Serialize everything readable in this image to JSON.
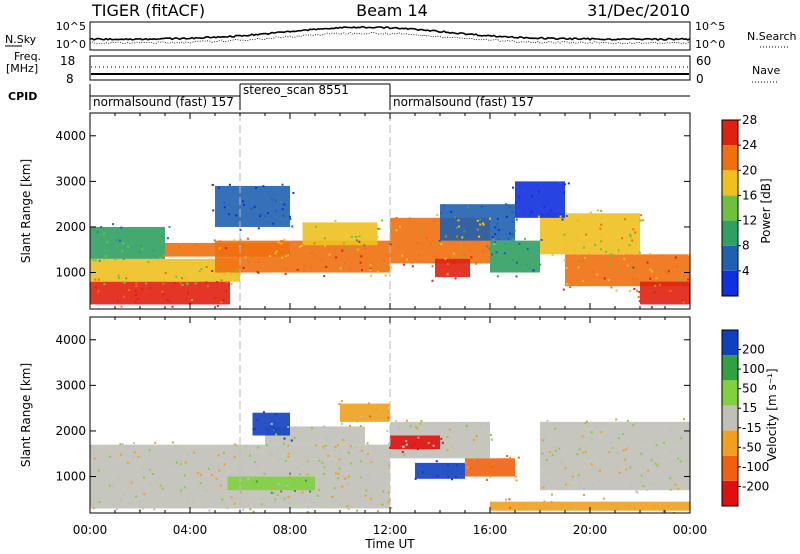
{
  "header": {
    "station": "TIGER (fitACF)",
    "beam": "Beam 14",
    "date": "31/Dec/2010"
  },
  "top_panels": {
    "nsky_label": "N.Sky",
    "freq_label_1": "Freq.",
    "freq_label_2": "[MHz]",
    "cpid_label": "CPID",
    "nsearch_label": "N.Search",
    "nave_label": "Nave",
    "nsky_ticks": [
      "10^5",
      "10^0"
    ],
    "nsearch_ticks": [
      "10^5",
      "10^0"
    ],
    "freq_ticks": [
      "18",
      "8"
    ],
    "nave_ticks": [
      "60",
      "0"
    ]
  },
  "cpid_segments": [
    {
      "label": "normalsound (fast) 157",
      "start_hour": 0,
      "end_hour": 6
    },
    {
      "label": "stereo_scan 8551",
      "start_hour": 6,
      "end_hour": 12
    },
    {
      "label": "normalsound (fast) 157",
      "start_hour": 12,
      "end_hour": 24
    }
  ],
  "colors": {
    "power": [
      "#1030e0",
      "#2060b0",
      "#30a060",
      "#70c040",
      "#f0c020",
      "#f07010",
      "#e02010"
    ],
    "velocity": [
      "#e01010",
      "#f06010",
      "#f0a020",
      "#c0c0b8",
      "#80d040",
      "#30a040",
      "#1040c0"
    ],
    "ground_scatter": "#b0b0b0"
  },
  "chart_data": [
    {
      "type": "heatmap",
      "name": "power_panel",
      "ylabel": "Slant Range [km]",
      "xlabel": "",
      "yticks": [
        "1000",
        "2000",
        "3000",
        "4000"
      ],
      "ylim": [
        200,
        4500
      ],
      "xlim": [
        0,
        24
      ],
      "colorbar": {
        "label": "Power [dB]",
        "ticks": [
          "4",
          "8",
          "12",
          "16",
          "20",
          "24",
          "28"
        ]
      },
      "regions": [
        {
          "x0": 0,
          "x1": 5.6,
          "y0": 300,
          "y1": 800,
          "value": 28
        },
        {
          "x0": 0,
          "x1": 6,
          "y0": 800,
          "y1": 1300,
          "value": 22
        },
        {
          "x0": 0,
          "x1": 3,
          "y0": 1300,
          "y1": 2000,
          "value": 14
        },
        {
          "x0": 3,
          "x1": 8,
          "y0": 1350,
          "y1": 1650,
          "value": 24
        },
        {
          "x0": 5,
          "x1": 12,
          "y0": 1000,
          "y1": 1700,
          "value": 26
        },
        {
          "x0": 8.5,
          "x1": 11.5,
          "y0": 1600,
          "y1": 2100,
          "value": 20
        },
        {
          "x0": 12,
          "x1": 16,
          "y0": 1200,
          "y1": 2200,
          "value": 24
        },
        {
          "x0": 13.8,
          "x1": 15.2,
          "y0": 900,
          "y1": 1300,
          "value": 28
        },
        {
          "x0": 16,
          "x1": 18,
          "y0": 1000,
          "y1": 1700,
          "value": 12
        },
        {
          "x0": 5,
          "x1": 8,
          "y0": 2000,
          "y1": 2900,
          "value": 8
        },
        {
          "x0": 14,
          "x1": 17,
          "y0": 1700,
          "y1": 2500,
          "value": 10
        },
        {
          "x0": 19,
          "x1": 24,
          "y0": 700,
          "y1": 1400,
          "value": 24
        },
        {
          "x0": 18,
          "x1": 22,
          "y0": 1400,
          "y1": 2300,
          "value": 22
        },
        {
          "x0": 22,
          "x1": 24,
          "y0": 300,
          "y1": 800,
          "value": 28
        },
        {
          "x0": 17,
          "x1": 19,
          "y0": 2200,
          "y1": 3000,
          "value": 6
        }
      ]
    },
    {
      "type": "heatmap",
      "name": "velocity_panel",
      "ylabel": "Slant Range [km]",
      "xlabel": "Time UT",
      "yticks": [
        "1000",
        "2000",
        "3000",
        "4000"
      ],
      "xticks": [
        "00:00",
        "04:00",
        "08:00",
        "12:00",
        "16:00",
        "20:00",
        "00:00"
      ],
      "ylim": [
        200,
        4500
      ],
      "xlim": [
        0,
        24
      ],
      "colorbar": {
        "label": "Velocity [m s⁻¹]",
        "ticks": [
          "200",
          "100",
          "50",
          "15",
          "-15",
          "-50",
          "-100",
          "-200"
        ]
      },
      "regions": [
        {
          "x0": 0,
          "x1": 12,
          "y0": 300,
          "y1": 1700,
          "value": 0
        },
        {
          "x0": 7,
          "x1": 11,
          "y0": 1700,
          "y1": 2100,
          "value": 0
        },
        {
          "x0": 12,
          "x1": 16,
          "y0": 1400,
          "y1": 2200,
          "value": 0
        },
        {
          "x0": 18,
          "x1": 24,
          "y0": 700,
          "y1": 2200,
          "value": 0
        },
        {
          "x0": 6.5,
          "x1": 8,
          "y0": 1900,
          "y1": 2400,
          "value": 200
        },
        {
          "x0": 13,
          "x1": 15,
          "y0": 950,
          "y1": 1300,
          "value": 180
        },
        {
          "x0": 5.5,
          "x1": 9,
          "y0": 700,
          "y1": 1000,
          "value": 40
        },
        {
          "x0": 15,
          "x1": 17,
          "y0": 1000,
          "y1": 1400,
          "value": -50
        },
        {
          "x0": 10,
          "x1": 12,
          "y0": 2200,
          "y1": 2600,
          "value": -40
        },
        {
          "x0": 16,
          "x1": 24,
          "y0": 250,
          "y1": 450,
          "value": -40
        },
        {
          "x0": 12,
          "x1": 14,
          "y0": 1600,
          "y1": 1900,
          "value": -150
        }
      ]
    }
  ]
}
